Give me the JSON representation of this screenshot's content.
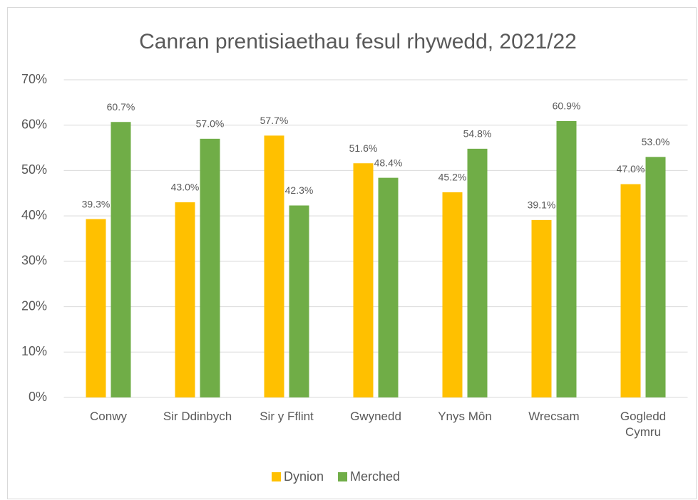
{
  "chart_data": {
    "type": "bar",
    "title": "Canran prentisiaethau fesul rhywedd, 2021/22",
    "categories": [
      "Conwy",
      "Sir Ddinbych",
      "Sir y Fflint",
      "Gwynedd",
      "Ynys Môn",
      "Wrecsam",
      "Gogledd Cymru"
    ],
    "series": [
      {
        "name": "Dynion",
        "color": "#FFC000",
        "values": [
          39.3,
          43.0,
          57.7,
          51.6,
          45.2,
          39.1,
          47.0
        ],
        "value_labels": [
          "39.3%",
          "43.0%",
          "57.7%",
          "51.6%",
          "45.2%",
          "39.1%",
          "47.0%"
        ]
      },
      {
        "name": "Merched",
        "color": "#70AD47",
        "values": [
          60.7,
          57.0,
          42.3,
          48.4,
          54.8,
          60.9,
          53.0
        ],
        "value_labels": [
          "60.7%",
          "57.0%",
          "42.3%",
          "48.4%",
          "54.8%",
          "60.9%",
          "53.0%"
        ]
      }
    ],
    "ylim": [
      0,
      70
    ],
    "yticks": [
      {
        "value": 0,
        "label": "0%"
      },
      {
        "value": 10,
        "label": "10%"
      },
      {
        "value": 20,
        "label": "20%"
      },
      {
        "value": 30,
        "label": "30%"
      },
      {
        "value": 40,
        "label": "40%"
      },
      {
        "value": 50,
        "label": "50%"
      },
      {
        "value": 60,
        "label": "60%"
      },
      {
        "value": 70,
        "label": "70%"
      }
    ],
    "grid": true,
    "legend": "bottom"
  }
}
